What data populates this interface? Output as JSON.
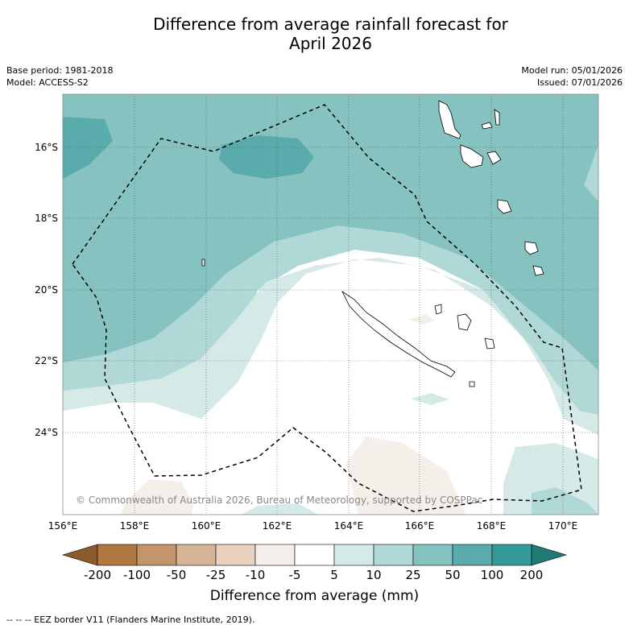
{
  "title_line1": "Difference from average rainfall forecast for",
  "title_line2": "April 2026",
  "meta": {
    "base_period": "Base period: 1981-2018",
    "model": "Model: ACCESS-S2",
    "model_run": "Model run: 05/01/2026",
    "issued": "Issued: 07/01/2026"
  },
  "latitude_labels": [
    "16°S",
    "18°S",
    "20°S",
    "22°S",
    "24°S"
  ],
  "longitude_labels": [
    "156°E",
    "158°E",
    "160°E",
    "162°E",
    "164°E",
    "166°E",
    "168°E",
    "170°E"
  ],
  "copyright": "© Commonwealth of Australia 2026, Bureau of Meteorology, supported by COSPPac",
  "colorbar": {
    "labels": [
      "-200",
      "-100",
      "-50",
      "-25",
      "-10",
      "-5",
      "5",
      "10",
      "25",
      "50",
      "100",
      "200"
    ],
    "colors": [
      "#8c5a2b",
      "#b07840",
      "#c4956a",
      "#d6b496",
      "#e8d2bf",
      "#f4efe8",
      "#ffffff",
      "#d5e9e6",
      "#b0d8d6",
      "#86c2c0",
      "#5aabab",
      "#339a97",
      "#1f7a76"
    ],
    "title": "Difference from average (mm)"
  },
  "footnote": "--  --  -- EEZ border V11 (Flanders Marine Institute, 2019)."
}
